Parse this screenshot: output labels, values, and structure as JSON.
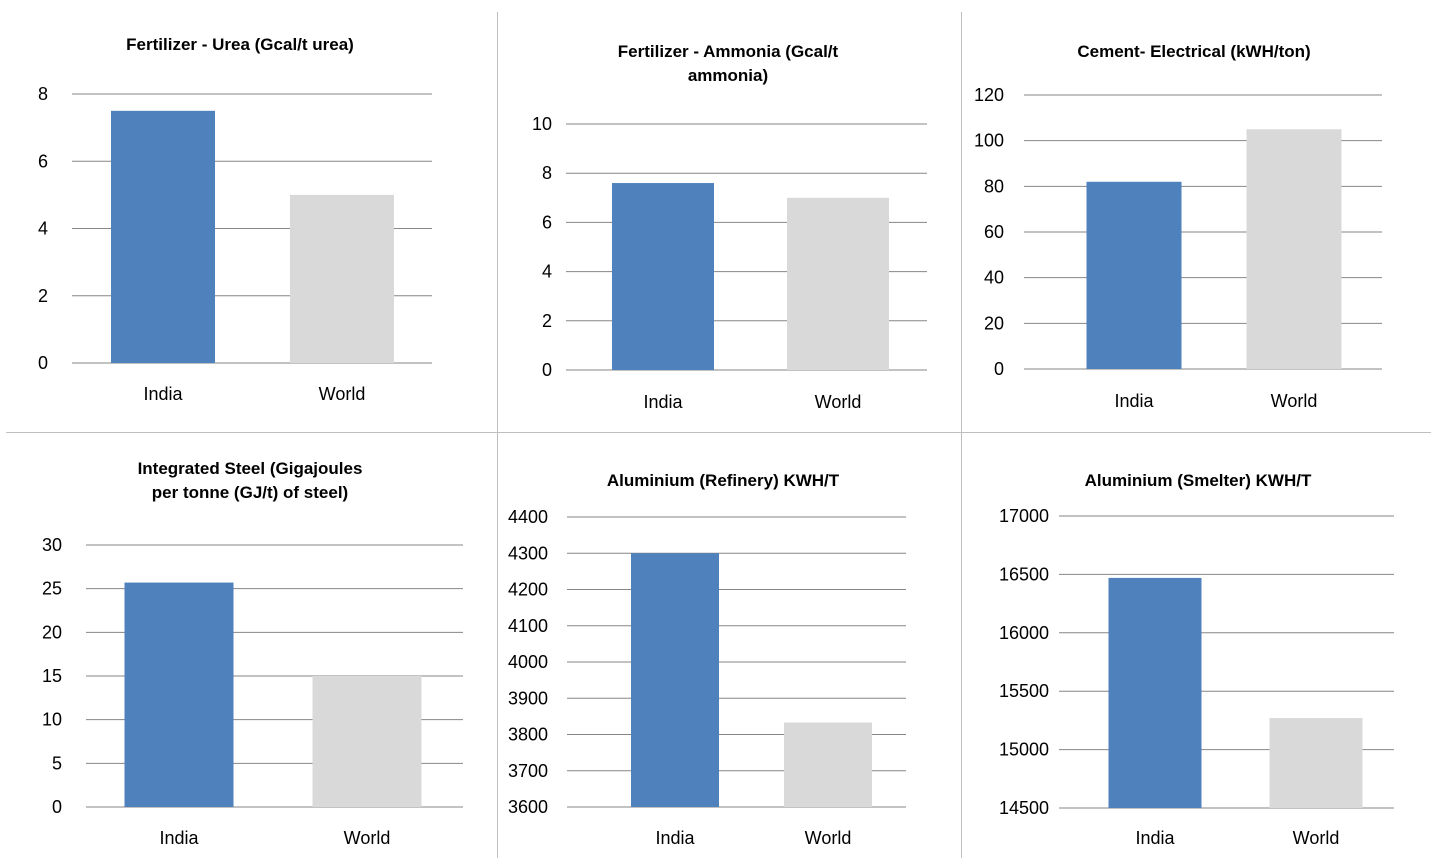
{
  "colors": {
    "india": "#4f81bd",
    "world": "#d9d9d9",
    "grid": "#868686",
    "separator": "#bfbfbf"
  },
  "chart_data": [
    {
      "type": "bar",
      "title_lines": [
        "Fertilizer - Urea (Gcal/t urea)"
      ],
      "categories": [
        "India",
        "World"
      ],
      "values": [
        7.5,
        5.0
      ],
      "ylim": [
        0,
        8
      ],
      "ytick_step": 2,
      "grid": true,
      "legend": "none"
    },
    {
      "type": "bar",
      "title_lines": [
        "Fertilizer - Ammonia (Gcal/t",
        "ammonia)"
      ],
      "categories": [
        "India",
        "World"
      ],
      "values": [
        7.6,
        7.0
      ],
      "ylim": [
        0,
        10
      ],
      "ytick_step": 2,
      "grid": true,
      "legend": "none"
    },
    {
      "type": "bar",
      "title_lines": [
        "Cement- Electrical (kWH/ton)"
      ],
      "categories": [
        "India",
        "World"
      ],
      "values": [
        82,
        105
      ],
      "ylim": [
        0,
        120
      ],
      "ytick_step": 20,
      "grid": true,
      "legend": "none"
    },
    {
      "type": "bar",
      "title_lines": [
        "Integrated Steel (Gigajoules",
        "per tonne (GJ/t) of steel)"
      ],
      "categories": [
        "India",
        "World"
      ],
      "values": [
        25.7,
        15.0
      ],
      "ylim": [
        0,
        30
      ],
      "ytick_step": 5,
      "grid": true,
      "legend": "none"
    },
    {
      "type": "bar",
      "title_lines": [
        "Aluminium (Refinery) KWH/T"
      ],
      "categories": [
        "India",
        "World"
      ],
      "values": [
        4300,
        3833
      ],
      "ylim": [
        3600,
        4400
      ],
      "ytick_step": 100,
      "grid": true,
      "legend": "none"
    },
    {
      "type": "bar",
      "title_lines": [
        "Aluminium (Smelter) KWH/T"
      ],
      "categories": [
        "India",
        "World"
      ],
      "values": [
        16470,
        15270
      ],
      "ylim": [
        14500,
        17000
      ],
      "ytick_step": 500,
      "grid": true,
      "legend": "none"
    }
  ]
}
